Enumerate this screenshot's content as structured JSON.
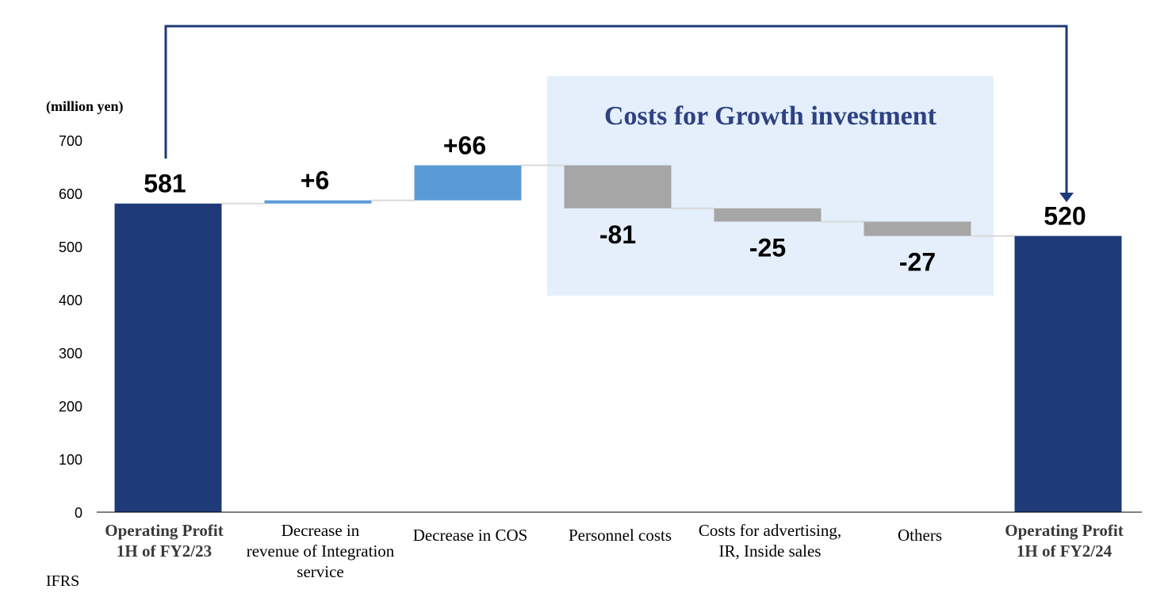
{
  "chart_data": {
    "type": "waterfall",
    "unit_label": "(million yen)",
    "note": "IFRS",
    "y_ticks": [
      0,
      100,
      200,
      300,
      400,
      500,
      600,
      700
    ],
    "ylim": [
      0,
      700
    ],
    "grid": false,
    "categories": [
      [
        "Operating Profit",
        "1H of FY2/23"
      ],
      [
        "Decrease in",
        "revenue of Integration",
        "service"
      ],
      [
        "Decrease in COS"
      ],
      [
        "Personnel costs"
      ],
      [
        "Costs for advertising,",
        "IR, Inside sales"
      ],
      [
        "Others"
      ],
      [
        "Operating Profit",
        "1H of FY2/24"
      ]
    ],
    "bars": [
      {
        "kind": "total",
        "value": 581,
        "label": "581"
      },
      {
        "kind": "increase",
        "value": 6,
        "label": "+6"
      },
      {
        "kind": "increase",
        "value": 66,
        "label": "+66"
      },
      {
        "kind": "decrease",
        "value": -81,
        "label": "-81"
      },
      {
        "kind": "decrease",
        "value": -25,
        "label": "-25"
      },
      {
        "kind": "decrease",
        "value": -27,
        "label": "-27"
      },
      {
        "kind": "total",
        "value": 520,
        "label": "520"
      }
    ],
    "highlight": {
      "title": "Costs for Growth investment",
      "covers_bars": [
        3,
        4,
        5
      ]
    },
    "colors": {
      "total": "#1f3a78",
      "increase": "#5b9bd5",
      "decrease": "#a6a6a6",
      "connector": "#d9d9d9",
      "highlight_bg": "#e4effb",
      "highlight_text": "#2e4283",
      "arrow": "#1f3a78"
    }
  }
}
